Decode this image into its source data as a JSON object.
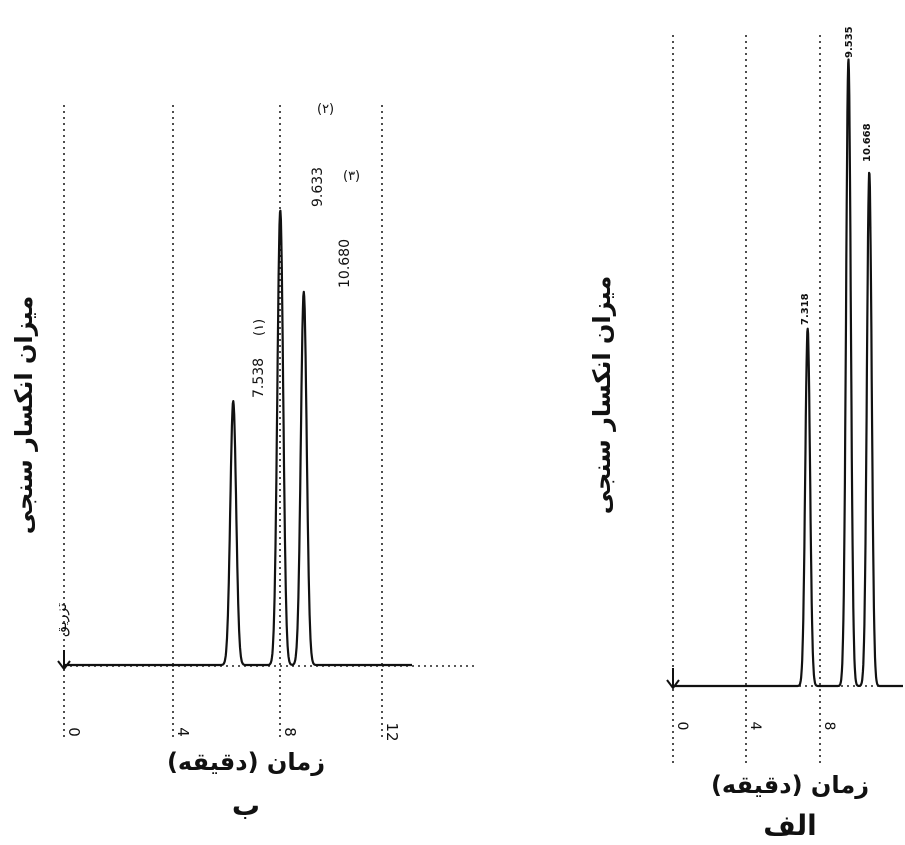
{
  "chart_data": [
    {
      "panel_label": "ب",
      "type": "line",
      "xlabel": "زمان (دقیقه)",
      "ylabel": "میزان انکسار سنجی",
      "x_tick_labels": [
        "0",
        "4",
        "8",
        "12"
      ],
      "x_ticks": [
        0,
        4,
        8,
        12
      ],
      "xlim": [
        0,
        15.5
      ],
      "grid": true,
      "injection_label": "تزریق",
      "peaks": [
        {
          "marker": "(۱)",
          "label": "7.538",
          "x": 7.538,
          "height": 0.58
        },
        {
          "marker": "(۲)",
          "label": "9.633",
          "x": 9.633,
          "height": 1.0
        },
        {
          "marker": "(۳)",
          "label": "10.680",
          "x": 10.68,
          "height": 0.82
        }
      ]
    },
    {
      "panel_label": "الف",
      "type": "line",
      "xlabel": "زمان (دقیقه)",
      "ylabel": "میزان انکسار سنجی",
      "x_tick_labels": [
        "0",
        "4",
        "8"
      ],
      "x_ticks": [
        0,
        4,
        8
      ],
      "xlim": [
        0,
        12.5
      ],
      "grid": true,
      "peaks": [
        {
          "label": "7.318",
          "x": 7.318,
          "height": 0.57
        },
        {
          "label": "9.535",
          "x": 9.535,
          "height": 1.0
        },
        {
          "label": "10.668",
          "x": 10.668,
          "height": 0.82
        }
      ]
    }
  ]
}
